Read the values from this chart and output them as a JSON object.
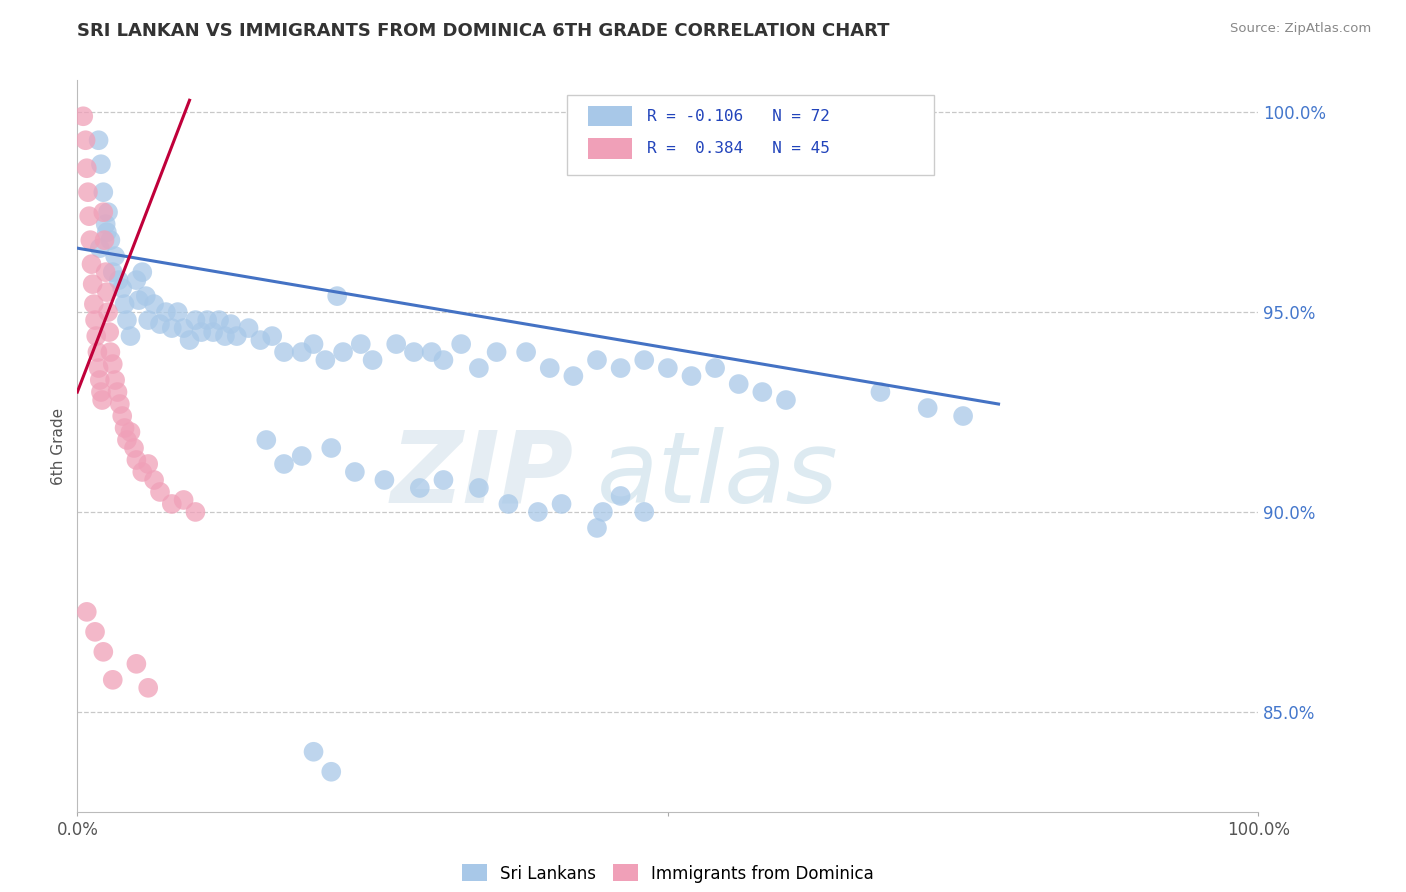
{
  "title": "SRI LANKAN VS IMMIGRANTS FROM DOMINICA 6TH GRADE CORRELATION CHART",
  "source_text": "Source: ZipAtlas.com",
  "ylabel": "6th Grade",
  "xmin": 0.0,
  "xmax": 1.0,
  "ymin": 0.825,
  "ymax": 1.008,
  "yticks": [
    0.85,
    0.9,
    0.95,
    1.0
  ],
  "ytick_labels": [
    "85.0%",
    "90.0%",
    "95.0%",
    "100.0%"
  ],
  "watermark_zip": "ZIP",
  "watermark_atlas": "atlas",
  "blue_color": "#a8c8e8",
  "pink_color": "#f0a0b8",
  "blue_line_color": "#4472c4",
  "pink_line_color": "#c0003a",
  "title_color": "#333333",
  "grid_color": "#c8c8c8",
  "blue_scatter": [
    [
      0.018,
      0.993
    ],
    [
      0.02,
      0.987
    ],
    [
      0.022,
      0.98
    ],
    [
      0.024,
      0.972
    ],
    [
      0.019,
      0.966
    ],
    [
      0.026,
      0.975
    ],
    [
      0.028,
      0.968
    ],
    [
      0.03,
      0.96
    ],
    [
      0.025,
      0.97
    ],
    [
      0.032,
      0.964
    ],
    [
      0.035,
      0.958
    ],
    [
      0.04,
      0.952
    ],
    [
      0.038,
      0.956
    ],
    [
      0.042,
      0.948
    ],
    [
      0.045,
      0.944
    ],
    [
      0.05,
      0.958
    ],
    [
      0.052,
      0.953
    ],
    [
      0.055,
      0.96
    ],
    [
      0.058,
      0.954
    ],
    [
      0.06,
      0.948
    ],
    [
      0.065,
      0.952
    ],
    [
      0.07,
      0.947
    ],
    [
      0.075,
      0.95
    ],
    [
      0.08,
      0.946
    ],
    [
      0.085,
      0.95
    ],
    [
      0.09,
      0.946
    ],
    [
      0.095,
      0.943
    ],
    [
      0.1,
      0.948
    ],
    [
      0.105,
      0.945
    ],
    [
      0.11,
      0.948
    ],
    [
      0.115,
      0.945
    ],
    [
      0.12,
      0.948
    ],
    [
      0.125,
      0.944
    ],
    [
      0.13,
      0.947
    ],
    [
      0.135,
      0.944
    ],
    [
      0.145,
      0.946
    ],
    [
      0.155,
      0.943
    ],
    [
      0.165,
      0.944
    ],
    [
      0.175,
      0.94
    ],
    [
      0.19,
      0.94
    ],
    [
      0.2,
      0.942
    ],
    [
      0.21,
      0.938
    ],
    [
      0.225,
      0.94
    ],
    [
      0.24,
      0.942
    ],
    [
      0.25,
      0.938
    ],
    [
      0.27,
      0.942
    ],
    [
      0.285,
      0.94
    ],
    [
      0.22,
      0.954
    ],
    [
      0.3,
      0.94
    ],
    [
      0.31,
      0.938
    ],
    [
      0.325,
      0.942
    ],
    [
      0.34,
      0.936
    ],
    [
      0.355,
      0.94
    ],
    [
      0.38,
      0.94
    ],
    [
      0.4,
      0.936
    ],
    [
      0.42,
      0.934
    ],
    [
      0.44,
      0.938
    ],
    [
      0.46,
      0.936
    ],
    [
      0.48,
      0.938
    ],
    [
      0.5,
      0.936
    ],
    [
      0.52,
      0.934
    ],
    [
      0.54,
      0.936
    ],
    [
      0.56,
      0.932
    ],
    [
      0.58,
      0.93
    ],
    [
      0.6,
      0.928
    ],
    [
      0.68,
      0.93
    ],
    [
      0.72,
      0.926
    ],
    [
      0.75,
      0.924
    ],
    [
      0.16,
      0.918
    ],
    [
      0.175,
      0.912
    ],
    [
      0.19,
      0.914
    ],
    [
      0.215,
      0.916
    ],
    [
      0.235,
      0.91
    ],
    [
      0.26,
      0.908
    ],
    [
      0.29,
      0.906
    ],
    [
      0.31,
      0.908
    ],
    [
      0.34,
      0.906
    ],
    [
      0.365,
      0.902
    ],
    [
      0.39,
      0.9
    ],
    [
      0.41,
      0.902
    ],
    [
      0.445,
      0.9
    ],
    [
      0.46,
      0.904
    ],
    [
      0.48,
      0.9
    ],
    [
      0.44,
      0.896
    ],
    [
      0.2,
      0.84
    ],
    [
      0.215,
      0.835
    ]
  ],
  "pink_scatter": [
    [
      0.005,
      0.999
    ],
    [
      0.007,
      0.993
    ],
    [
      0.008,
      0.986
    ],
    [
      0.009,
      0.98
    ],
    [
      0.01,
      0.974
    ],
    [
      0.011,
      0.968
    ],
    [
      0.012,
      0.962
    ],
    [
      0.013,
      0.957
    ],
    [
      0.014,
      0.952
    ],
    [
      0.015,
      0.948
    ],
    [
      0.016,
      0.944
    ],
    [
      0.017,
      0.94
    ],
    [
      0.018,
      0.936
    ],
    [
      0.019,
      0.933
    ],
    [
      0.02,
      0.93
    ],
    [
      0.021,
      0.928
    ],
    [
      0.022,
      0.975
    ],
    [
      0.023,
      0.968
    ],
    [
      0.024,
      0.96
    ],
    [
      0.025,
      0.955
    ],
    [
      0.026,
      0.95
    ],
    [
      0.027,
      0.945
    ],
    [
      0.028,
      0.94
    ],
    [
      0.03,
      0.937
    ],
    [
      0.032,
      0.933
    ],
    [
      0.034,
      0.93
    ],
    [
      0.036,
      0.927
    ],
    [
      0.038,
      0.924
    ],
    [
      0.04,
      0.921
    ],
    [
      0.042,
      0.918
    ],
    [
      0.045,
      0.92
    ],
    [
      0.048,
      0.916
    ],
    [
      0.05,
      0.913
    ],
    [
      0.055,
      0.91
    ],
    [
      0.06,
      0.912
    ],
    [
      0.065,
      0.908
    ],
    [
      0.07,
      0.905
    ],
    [
      0.08,
      0.902
    ],
    [
      0.09,
      0.903
    ],
    [
      0.1,
      0.9
    ],
    [
      0.05,
      0.862
    ],
    [
      0.06,
      0.856
    ],
    [
      0.008,
      0.875
    ],
    [
      0.015,
      0.87
    ],
    [
      0.022,
      0.865
    ],
    [
      0.03,
      0.858
    ]
  ],
  "blue_trend_x": [
    0.0,
    0.78
  ],
  "blue_trend_y": [
    0.966,
    0.927
  ],
  "pink_trend_x": [
    0.0,
    0.095
  ],
  "pink_trend_y": [
    0.93,
    1.003
  ]
}
